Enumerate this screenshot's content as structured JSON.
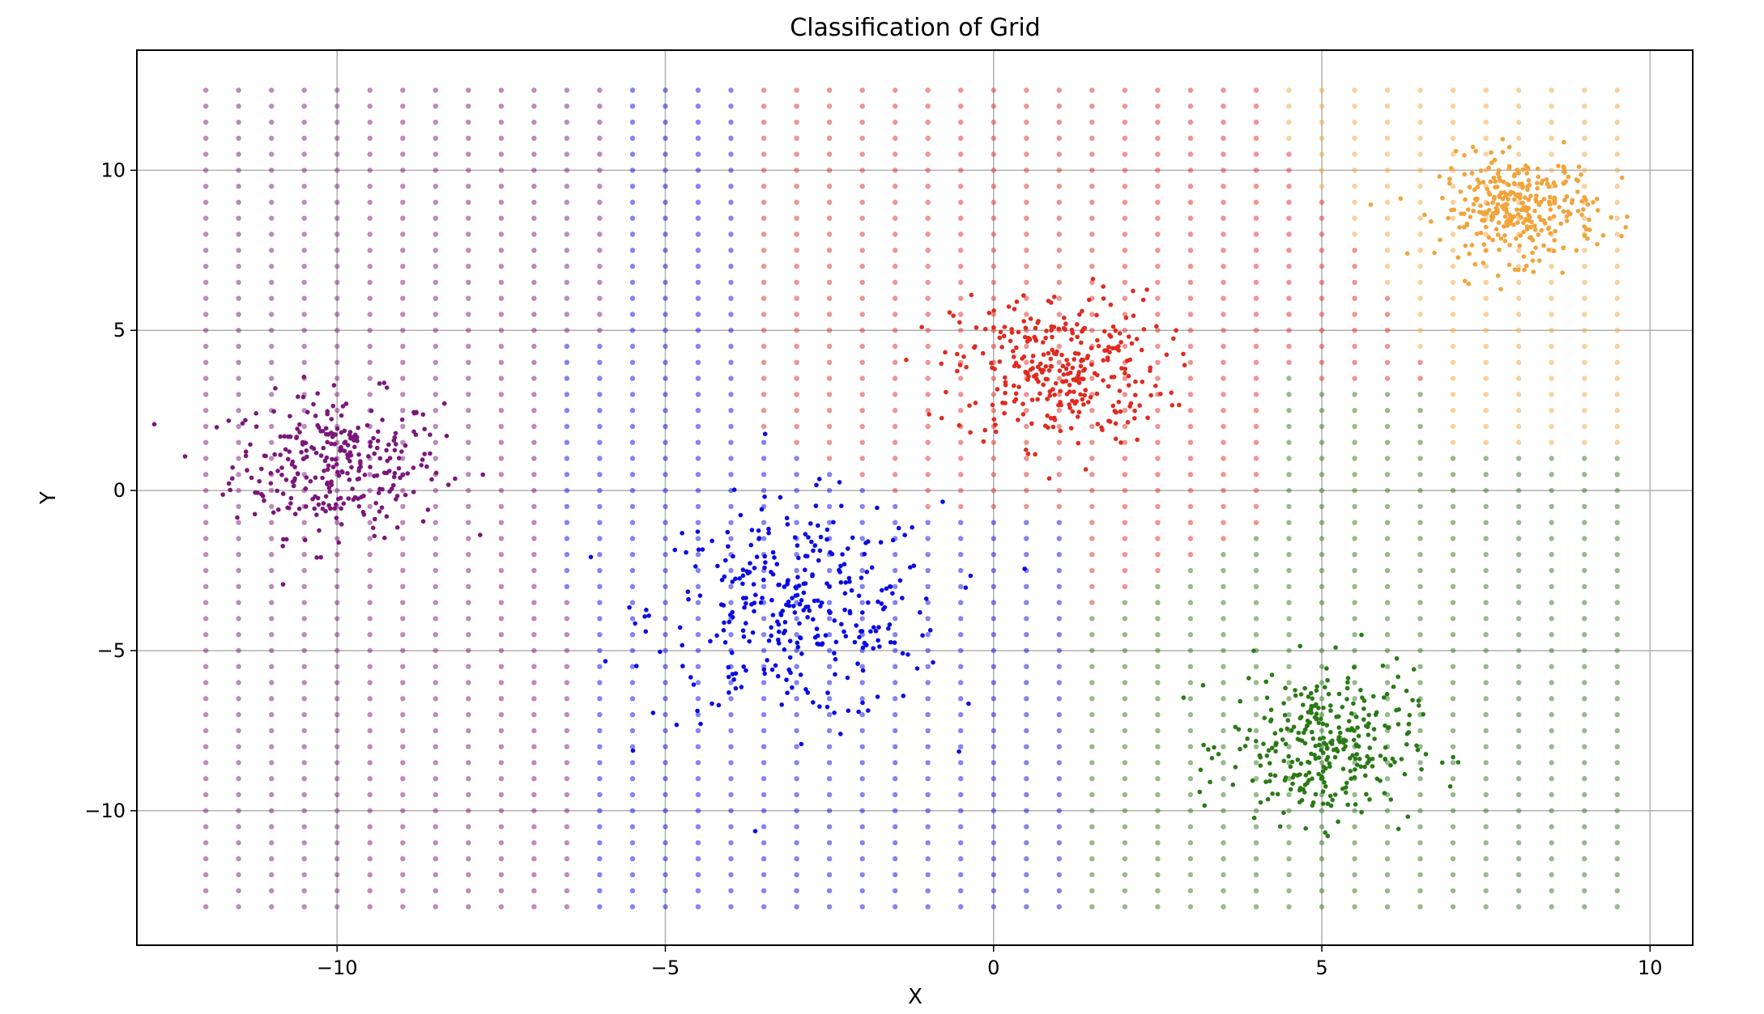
{
  "chart_data": {
    "type": "scatter",
    "title": "Classification of Grid",
    "xlabel": "X",
    "ylabel": "Y",
    "xlim": [
      -13.05,
      10.65
    ],
    "ylim": [
      -14.2,
      13.75
    ],
    "grid": true,
    "legend": null,
    "xticks": [
      -10,
      -5,
      0,
      5,
      10
    ],
    "xtick_labels": [
      "−10",
      "−5",
      "0",
      "5",
      "10"
    ],
    "yticks": [
      10,
      5,
      0,
      -5,
      -10
    ],
    "ytick_labels": [
      "10",
      "5",
      "0",
      "−5",
      "−10"
    ],
    "grid_points": {
      "x_start": -12,
      "x_end": 9.5,
      "x_step": 0.5,
      "y_start": -13,
      "y_end": 12.5,
      "y_step": 0.5,
      "opacity": 0.5
    },
    "classes": [
      {
        "id": "purple",
        "color": "#7b177b",
        "center": [
          -10,
          0.8
        ],
        "spread": [
          0.8,
          1.1
        ],
        "count": 300
      },
      {
        "id": "blue",
        "color": "#0a0ae6",
        "center": [
          -3,
          -3.8
        ],
        "spread": [
          1.1,
          1.7
        ],
        "count": 330
      },
      {
        "id": "red",
        "color": "#e02a20",
        "center": [
          1,
          3.8
        ],
        "spread": [
          0.8,
          1.2
        ],
        "count": 320
      },
      {
        "id": "orange",
        "color": "#f2a33a",
        "center": [
          8,
          8.8
        ],
        "spread": [
          0.6,
          0.8
        ],
        "count": 320
      },
      {
        "id": "green",
        "color": "#2a7a16",
        "center": [
          5,
          -8
        ],
        "spread": [
          0.7,
          1.2
        ],
        "count": 320
      }
    ]
  }
}
